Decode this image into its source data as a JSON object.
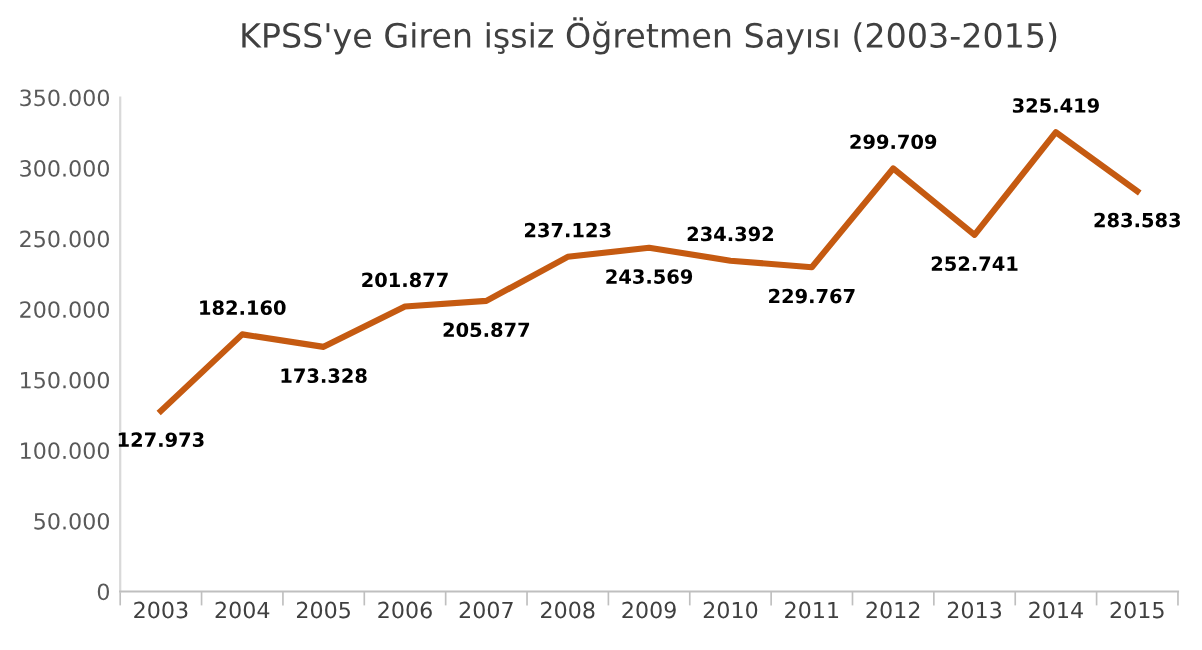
{
  "chart_data": {
    "type": "line",
    "title": "KPSS'ye Giren işsiz Öğretmen Sayısı (2003-2015)",
    "categories": [
      "2003",
      "2004",
      "2005",
      "2006",
      "2007",
      "2008",
      "2009",
      "2010",
      "2011",
      "2012",
      "2013",
      "2014",
      "2015"
    ],
    "values": [
      127973,
      182160,
      173328,
      201877,
      205877,
      237123,
      243569,
      234392,
      229767,
      299709,
      252741,
      325419,
      283583
    ],
    "value_labels": [
      "127.973",
      "182.160",
      "173.328",
      "201.877",
      "205.877",
      "237.123",
      "243.569",
      "234.392",
      "229.767",
      "299.709",
      "252.741",
      "325.419",
      "283.583"
    ],
    "color": "#c55a11",
    "ylim": [
      0,
      350000
    ],
    "yticks": [
      {
        "value": 0,
        "label": "0"
      },
      {
        "value": 50000,
        "label": "50.000"
      },
      {
        "value": 100000,
        "label": "100.000"
      },
      {
        "value": 150000,
        "label": "150.000"
      },
      {
        "value": 200000,
        "label": "200.000"
      },
      {
        "value": 250000,
        "label": "250.000"
      },
      {
        "value": 300000,
        "label": "300.000"
      },
      {
        "value": 350000,
        "label": "350.000"
      }
    ],
    "grid": false,
    "marker": "none",
    "line_style": "solid"
  }
}
